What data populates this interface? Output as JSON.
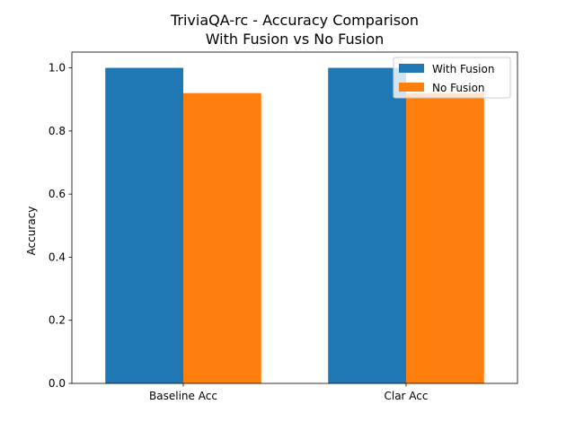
{
  "chart_data": {
    "type": "bar",
    "title_line1": "TriviaQA-rc - Accuracy Comparison",
    "title_line2": "With Fusion vs No Fusion",
    "xlabel": "",
    "ylabel": "Accuracy",
    "categories": [
      "Baseline Acc",
      "Clar Acc"
    ],
    "series": [
      {
        "name": "With Fusion",
        "values": [
          1.0,
          1.0
        ],
        "color": "#1f77b4"
      },
      {
        "name": "No Fusion",
        "values": [
          0.92,
          0.92
        ],
        "color": "#ff7f0e"
      }
    ],
    "ylim": [
      0,
      1.05
    ],
    "yticks": [
      "0.0",
      "0.2",
      "0.4",
      "0.6",
      "0.8",
      "1.0"
    ],
    "grid": false,
    "legend_position": "top-right"
  }
}
